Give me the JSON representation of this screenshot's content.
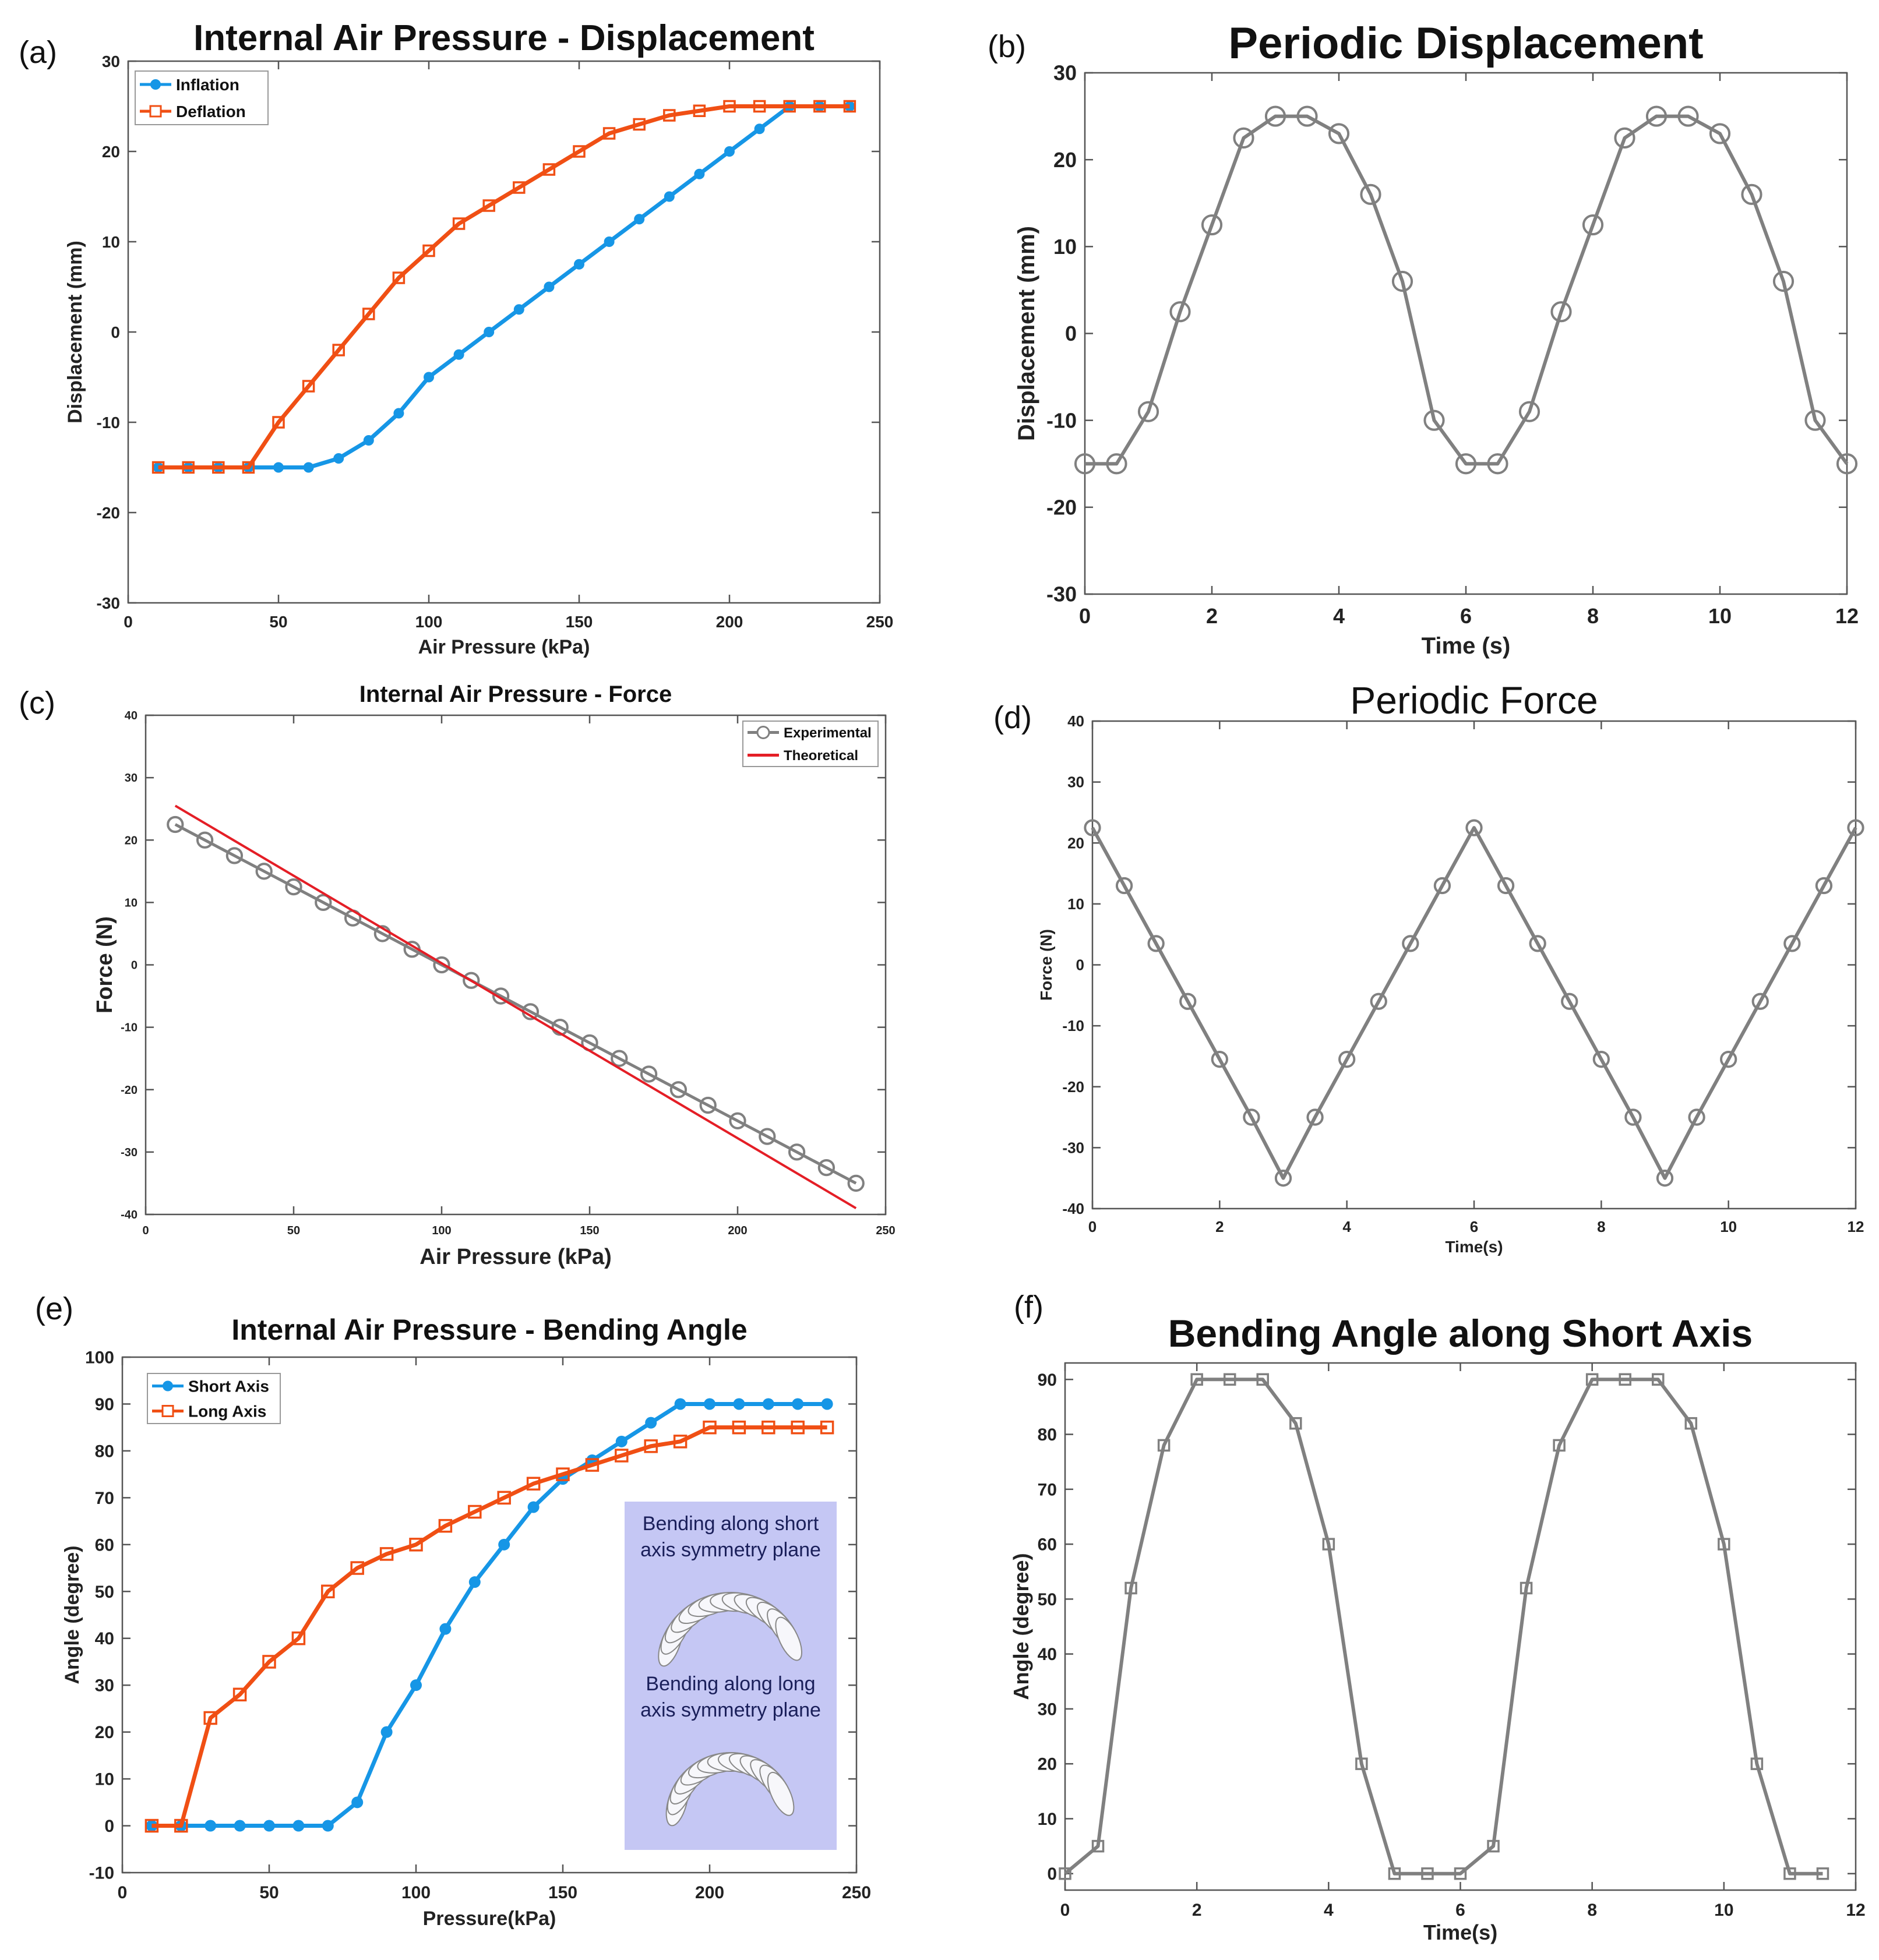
{
  "panel_labels": [
    "(a)",
    "(b)",
    "(c)",
    "(d)",
    "(e)",
    "(f)"
  ],
  "colors": {
    "blue": "#1696e6",
    "orange": "#f04f14",
    "gray": "#808080",
    "red": "#e41e26",
    "inset_bg": "#c5c7f4",
    "axis": "#555555"
  },
  "chart_data": [
    {
      "type": "line",
      "title": "Internal Air Pressure - Displacement",
      "xlabel": "Air Pressure (kPa)",
      "ylabel": "Displacement (mm)",
      "xlim": [
        0,
        250
      ],
      "ylim": [
        -30,
        30
      ],
      "xticks": [
        0,
        50,
        100,
        150,
        200,
        250
      ],
      "yticks": [
        -30,
        -20,
        -10,
        0,
        10,
        20,
        30
      ],
      "legend_position": "top-left",
      "series": [
        {
          "name": "Inflation",
          "color": "#1696e6",
          "marker": "filled-circle",
          "x": [
            10,
            20,
            30,
            40,
            50,
            60,
            70,
            80,
            90,
            100,
            110,
            120,
            130,
            140,
            150,
            160,
            170,
            180,
            190,
            200,
            210,
            220,
            230,
            240
          ],
          "y": [
            -15,
            -15,
            -15,
            -15,
            -15,
            -15,
            -14,
            -12,
            -9,
            -5,
            -2.5,
            0,
            2.5,
            5,
            7.5,
            10,
            12.5,
            15,
            17.5,
            20,
            22.5,
            25,
            25,
            25
          ]
        },
        {
          "name": "Deflation",
          "color": "#f04f14",
          "marker": "open-square",
          "x": [
            10,
            20,
            30,
            40,
            50,
            60,
            70,
            80,
            90,
            100,
            110,
            120,
            130,
            140,
            150,
            160,
            170,
            180,
            190,
            200,
            210,
            220,
            230,
            240
          ],
          "y": [
            -15,
            -15,
            -15,
            -15,
            -10,
            -6,
            -2,
            2,
            6,
            9,
            12,
            14,
            16,
            18,
            20,
            22,
            23,
            24,
            24.5,
            25,
            25,
            25,
            25,
            25
          ]
        }
      ]
    },
    {
      "type": "line",
      "title": "Periodic Displacement",
      "xlabel": "Time (s)",
      "ylabel": "Displacement (mm)",
      "xlim": [
        0,
        12
      ],
      "ylim": [
        -30,
        30
      ],
      "xticks": [
        0,
        2,
        4,
        6,
        8,
        10,
        12
      ],
      "yticks": [
        -30,
        -20,
        -10,
        0,
        10,
        20,
        30
      ],
      "series": [
        {
          "color": "#808080",
          "marker": "open-circle",
          "x": [
            0,
            0.5,
            1,
            1.5,
            2,
            2.5,
            3,
            3.5,
            4,
            4.5,
            5,
            5.5,
            6,
            6.5,
            7,
            7.5,
            8,
            8.5,
            9,
            9.5,
            10,
            10.5,
            11,
            11.5,
            12
          ],
          "y": [
            -15,
            -15,
            -9,
            2.5,
            12.5,
            22.5,
            25,
            25,
            23,
            16,
            6,
            -10,
            -15,
            -15,
            -9,
            2.5,
            12.5,
            22.5,
            25,
            25,
            23,
            16,
            6,
            -10,
            -15
          ]
        }
      ]
    },
    {
      "type": "line",
      "title": "Internal Air Pressure - Force",
      "xlabel": "Air Pressure (kPa)",
      "ylabel": "Force (N)",
      "xlim": [
        0,
        250
      ],
      "ylim": [
        -40,
        40
      ],
      "xticks": [
        0,
        50,
        100,
        150,
        200,
        250
      ],
      "yticks": [
        -40,
        -30,
        -20,
        -10,
        0,
        10,
        20,
        30,
        40
      ],
      "legend_position": "top-right",
      "series": [
        {
          "name": "Experimental",
          "color": "#808080",
          "marker": "open-circle",
          "x": [
            10,
            20,
            30,
            40,
            50,
            60,
            70,
            80,
            90,
            100,
            110,
            120,
            130,
            140,
            150,
            160,
            170,
            180,
            190,
            200,
            210,
            220,
            230,
            240
          ],
          "y": [
            22.5,
            20,
            17.5,
            15,
            12.5,
            10,
            7.5,
            5,
            2.5,
            0,
            -2.5,
            -5,
            -7.5,
            -10,
            -12.5,
            -15,
            -17.5,
            -20,
            -22.5,
            -25,
            -27.5,
            -30,
            -32.5,
            -35
          ]
        },
        {
          "name": "Theoretical",
          "color": "#e41e26",
          "marker": "none",
          "x": [
            10,
            240
          ],
          "y": [
            25.5,
            -39
          ]
        }
      ]
    },
    {
      "type": "line",
      "title": "Periodic Force",
      "xlabel": "Time(s)",
      "ylabel": "Force (N)",
      "xlim": [
        0,
        12
      ],
      "ylim": [
        -40,
        40
      ],
      "xticks": [
        0,
        2,
        4,
        6,
        8,
        10,
        12
      ],
      "yticks": [
        -40,
        -30,
        -20,
        -10,
        0,
        10,
        20,
        30,
        40
      ],
      "series": [
        {
          "color": "#808080",
          "marker": "open-circle",
          "x": [
            0,
            0.5,
            1,
            1.5,
            2,
            2.5,
            3,
            3.5,
            4,
            4.5,
            5,
            5.5,
            6,
            6.5,
            7,
            7.5,
            8,
            8.5,
            9,
            9.5,
            10,
            10.5,
            11,
            11.5,
            12
          ],
          "y": [
            22.5,
            13,
            3.5,
            -6,
            -15.5,
            -25,
            -35,
            -25,
            -15.5,
            -6,
            3.5,
            13,
            22.5,
            13,
            3.5,
            -6,
            -15.5,
            -25,
            -35,
            -25,
            -15.5,
            -6,
            3.5,
            13,
            22.5
          ]
        }
      ]
    },
    {
      "type": "line",
      "title": "Internal Air Pressure - Bending Angle",
      "xlabel": "Pressure(kPa)",
      "ylabel": "Angle (degree)",
      "xlim": [
        0,
        250
      ],
      "ylim": [
        -10,
        100
      ],
      "xticks": [
        0,
        50,
        100,
        150,
        200,
        250
      ],
      "yticks": [
        -10,
        0,
        10,
        20,
        30,
        40,
        50,
        60,
        70,
        80,
        90,
        100
      ],
      "legend_position": "top-left",
      "inset_captions": [
        "Bending along short",
        "axis symmetry plane",
        "Bending along long",
        "axis symmetry plane"
      ],
      "series": [
        {
          "name": "Short Axis",
          "color": "#1696e6",
          "marker": "filled-circle",
          "x": [
            10,
            20,
            30,
            40,
            50,
            60,
            70,
            80,
            90,
            100,
            110,
            120,
            130,
            140,
            150,
            160,
            170,
            180,
            190,
            200,
            210,
            220,
            230,
            240
          ],
          "y": [
            0,
            0,
            0,
            0,
            0,
            0,
            0,
            5,
            20,
            30,
            42,
            52,
            60,
            68,
            74,
            78,
            82,
            86,
            90,
            90,
            90,
            90,
            90,
            90
          ]
        },
        {
          "name": "Long Axis",
          "color": "#f04f14",
          "marker": "open-square",
          "x": [
            10,
            20,
            30,
            40,
            50,
            60,
            70,
            80,
            90,
            100,
            110,
            120,
            130,
            140,
            150,
            160,
            170,
            180,
            190,
            200,
            210,
            220,
            230,
            240
          ],
          "y": [
            0,
            0,
            23,
            28,
            35,
            40,
            50,
            55,
            58,
            60,
            64,
            67,
            70,
            73,
            75,
            77,
            79,
            81,
            82,
            85,
            85,
            85,
            85,
            85
          ]
        }
      ]
    },
    {
      "type": "line",
      "title": "Bending Angle along Short Axis",
      "xlabel": "Time(s)",
      "ylabel": "Angle (degree)",
      "xlim": [
        0,
        12
      ],
      "ylim": [
        -3,
        93
      ],
      "xticks": [
        0,
        2,
        4,
        6,
        8,
        10,
        12
      ],
      "yticks": [
        0,
        10,
        20,
        30,
        40,
        50,
        60,
        70,
        80,
        90
      ],
      "series": [
        {
          "color": "#808080",
          "marker": "open-square",
          "x": [
            0,
            0.5,
            1,
            1.5,
            2,
            2.5,
            3,
            3.5,
            4,
            4.5,
            5,
            5.5,
            6,
            6.5,
            7,
            7.5,
            8,
            8.5,
            9,
            9.5,
            10,
            10.5,
            11,
            11.5
          ],
          "y": [
            0,
            5,
            52,
            78,
            90,
            90,
            90,
            82,
            60,
            20,
            0,
            0,
            0,
            5,
            52,
            78,
            90,
            90,
            90,
            82,
            60,
            20,
            0,
            0
          ]
        }
      ]
    }
  ]
}
